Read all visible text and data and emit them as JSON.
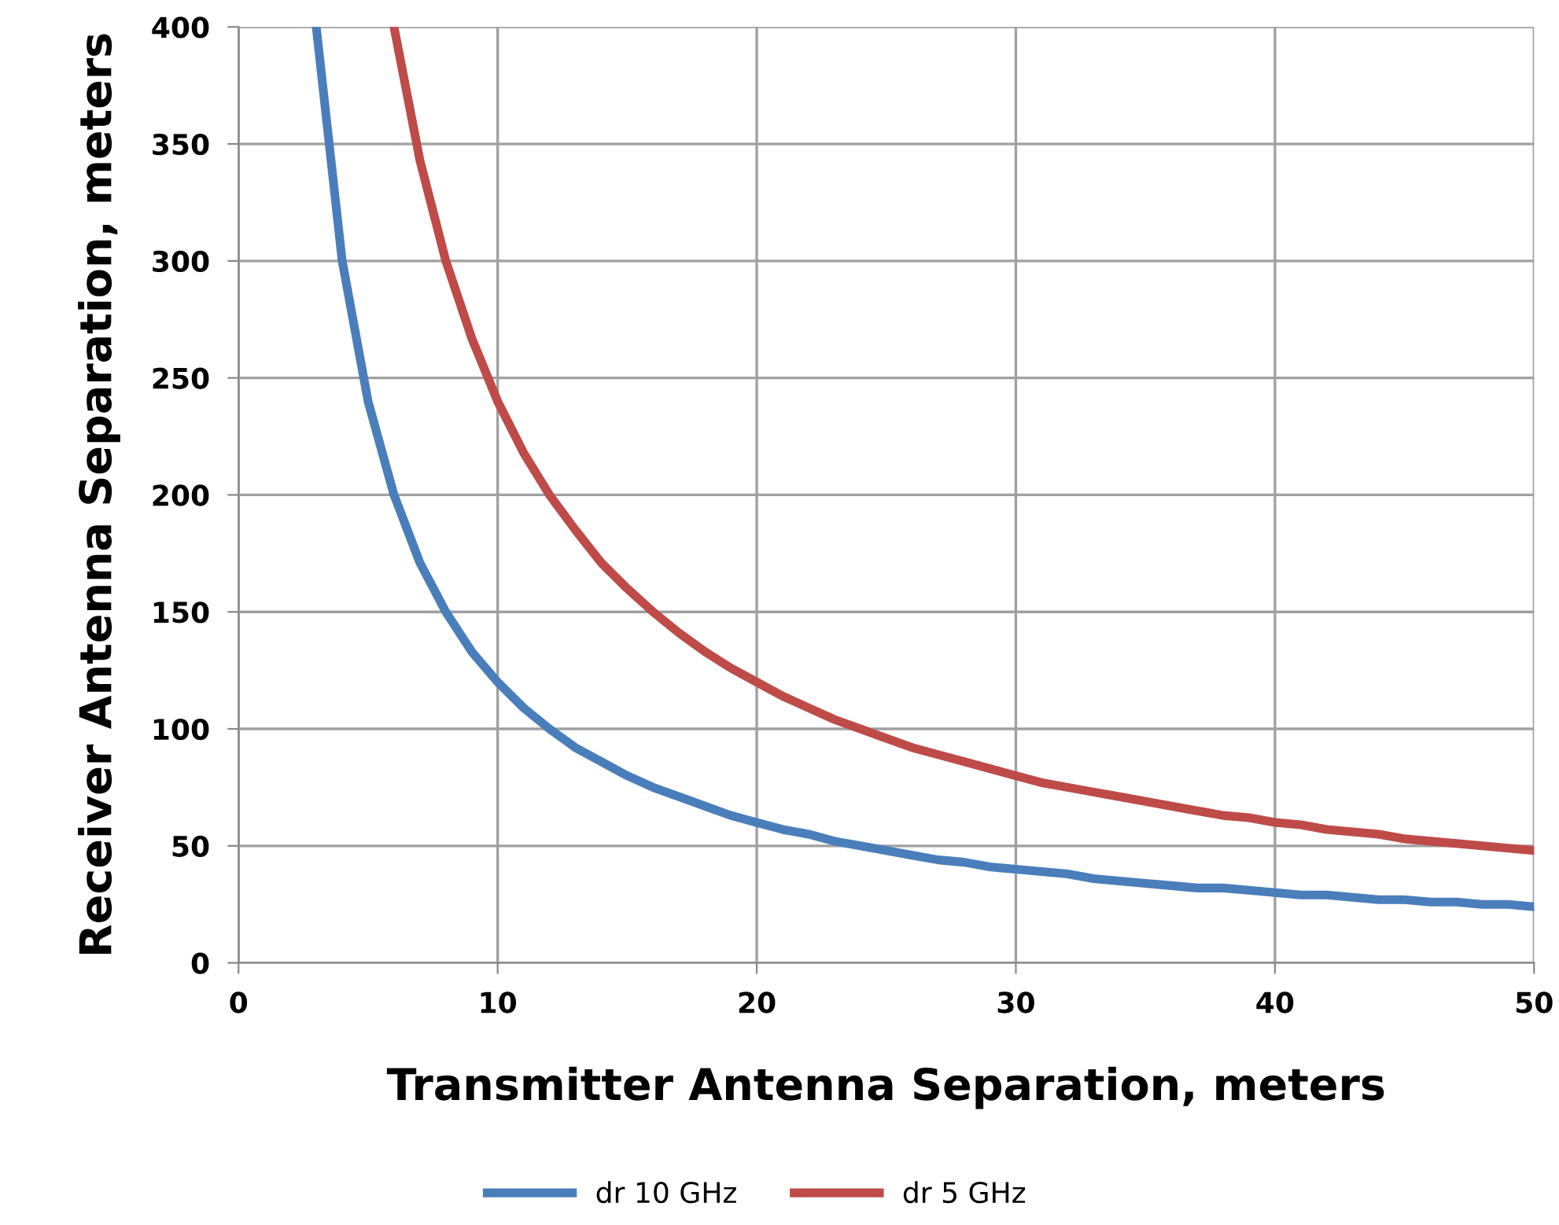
{
  "chart_data": {
    "type": "line",
    "xlabel": "Transmitter Antenna Separation, meters",
    "ylabel": "Receiver Antenna Separation, meters",
    "xlim": [
      0,
      50
    ],
    "ylim": [
      0,
      400
    ],
    "xticks": [
      0,
      10,
      20,
      30,
      40,
      50
    ],
    "yticks": [
      0,
      50,
      100,
      150,
      200,
      250,
      300,
      350,
      400
    ],
    "grid": true,
    "legend": "bottom",
    "marker": "none",
    "line_style": "solid",
    "series": [
      {
        "name": "dr 10 GHz",
        "color": "#4a7ebb",
        "x": [
          3,
          4,
          5,
          6,
          7,
          8,
          9,
          10,
          11,
          12,
          13,
          14,
          15,
          16,
          17,
          18,
          19,
          20,
          21,
          22,
          23,
          24,
          25,
          26,
          27,
          28,
          29,
          30,
          31,
          32,
          33,
          34,
          35,
          36,
          37,
          38,
          39,
          40,
          41,
          42,
          43,
          44,
          45,
          46,
          47,
          48,
          49,
          50
        ],
        "values": [
          400,
          300,
          240,
          200,
          171,
          150,
          133,
          120,
          109,
          100,
          92,
          86,
          80,
          75,
          71,
          67,
          63,
          60,
          57,
          55,
          52,
          50,
          48,
          46,
          44,
          43,
          41,
          40,
          39,
          38,
          36,
          35,
          34,
          33,
          32,
          32,
          31,
          30,
          29,
          29,
          28,
          27,
          27,
          26,
          26,
          25,
          25,
          24
        ]
      },
      {
        "name": "dr 5 GHz",
        "color": "#be4b48",
        "x": [
          6,
          7,
          8,
          9,
          10,
          11,
          12,
          13,
          14,
          15,
          16,
          17,
          18,
          19,
          20,
          21,
          22,
          23,
          24,
          25,
          26,
          27,
          28,
          29,
          30,
          31,
          32,
          33,
          34,
          35,
          36,
          37,
          38,
          39,
          40,
          41,
          42,
          43,
          44,
          45,
          46,
          47,
          48,
          49,
          50
        ],
        "values": [
          400,
          343,
          300,
          267,
          240,
          218,
          200,
          185,
          171,
          160,
          150,
          141,
          133,
          126,
          120,
          114,
          109,
          104,
          100,
          96,
          92,
          89,
          86,
          83,
          80,
          77,
          75,
          73,
          71,
          69,
          67,
          65,
          63,
          62,
          60,
          59,
          57,
          56,
          55,
          53,
          52,
          51,
          50,
          49,
          48
        ]
      }
    ]
  }
}
